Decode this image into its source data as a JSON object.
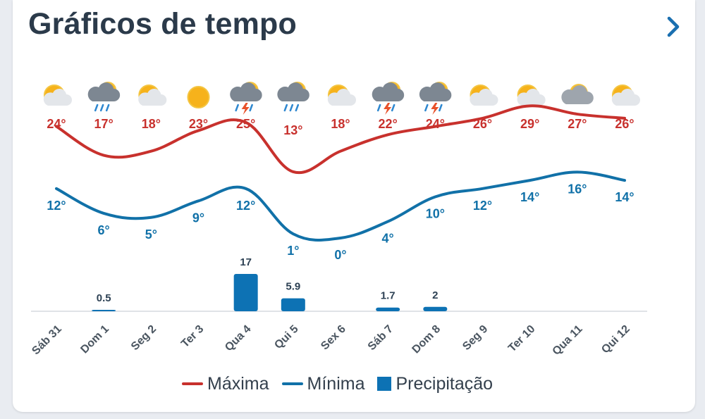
{
  "header": {
    "title": "Gráficos de tempo",
    "next_icon": "chevron-right-icon"
  },
  "colors": {
    "max": "#c8312d",
    "min": "#1171a8",
    "precip": "#0d72b4",
    "axis_text": "#4a5560",
    "title": "#2b3a4a"
  },
  "chart_data": {
    "type": "line",
    "x": [
      "Sáb 31",
      "Dom 1",
      "Seg 2",
      "Ter 3",
      "Qua 4",
      "Qui 5",
      "Sex 6",
      "Sáb 7",
      "Dom 8",
      "Seg 9",
      "Ter 10",
      "Qua 11",
      "Qui 12"
    ],
    "series": [
      {
        "name": "Máxima",
        "values": [
          24,
          17,
          18,
          23,
          25,
          13,
          18,
          22,
          24,
          26,
          29,
          27,
          26
        ]
      },
      {
        "name": "Mínima",
        "values": [
          12,
          6,
          5,
          9,
          12,
          1,
          0,
          4,
          10,
          12,
          14,
          16,
          14
        ]
      },
      {
        "name": "Precipitação",
        "type": "bar",
        "values": [
          null,
          0.5,
          null,
          null,
          17,
          5.9,
          null,
          1.7,
          2,
          null,
          null,
          null,
          null
        ]
      }
    ],
    "weather_icons": [
      "partly-sunny-icon",
      "rain-cloud-icon",
      "partly-sunny-icon",
      "sunny-icon",
      "thunderstorm-icon",
      "rain-cloud-icon",
      "partly-sunny-icon",
      "thunderstorm-icon",
      "thunderstorm-icon",
      "partly-sunny-icon",
      "partly-sunny-icon",
      "cloudy-icon",
      "partly-sunny-icon"
    ],
    "max_labels": [
      "24°",
      "17°",
      "18°",
      "23°",
      "25°",
      "13°",
      "18°",
      "22°",
      "24°",
      "26°",
      "29°",
      "27°",
      "26°"
    ],
    "min_labels": [
      "12°",
      "6°",
      "5°",
      "9°",
      "12°",
      "1°",
      "0°",
      "4°",
      "10°",
      "12°",
      "14°",
      "16°",
      "14°"
    ],
    "precip_labels": [
      "",
      "0.5",
      "",
      "",
      "17",
      "5.9",
      "",
      "1.7",
      "2",
      "",
      "",
      "",
      ""
    ],
    "legend": [
      "Máxima",
      "Mínima",
      "Precipitação"
    ],
    "legend_position": "bottom",
    "grid": false
  }
}
